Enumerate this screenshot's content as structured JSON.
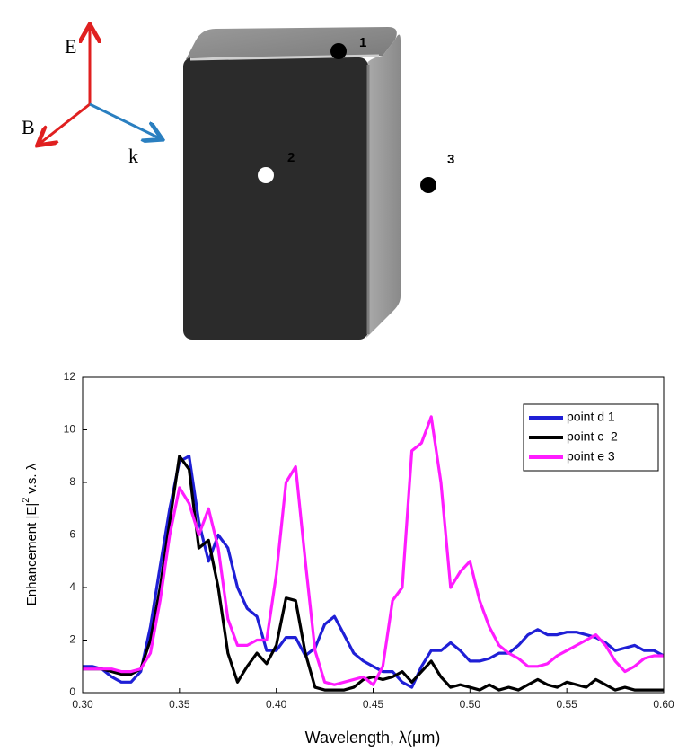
{
  "diagram": {
    "axes": [
      "E",
      "B",
      "k"
    ],
    "points": [
      "1",
      "2",
      "3"
    ]
  },
  "chart_data": {
    "type": "line",
    "xlabel": "Wavelength, λ(μm)",
    "ylabel": {
      "text": "Enhancement |E|",
      "superscript": "2",
      "suffix": "v.s. λ"
    },
    "x": [
      0.3,
      0.305,
      0.31,
      0.315,
      0.32,
      0.325,
      0.33,
      0.335,
      0.34,
      0.345,
      0.35,
      0.355,
      0.36,
      0.365,
      0.37,
      0.375,
      0.38,
      0.385,
      0.39,
      0.395,
      0.4,
      0.405,
      0.41,
      0.415,
      0.42,
      0.425,
      0.43,
      0.435,
      0.44,
      0.445,
      0.45,
      0.455,
      0.46,
      0.465,
      0.47,
      0.475,
      0.48,
      0.485,
      0.49,
      0.495,
      0.5,
      0.505,
      0.51,
      0.515,
      0.52,
      0.525,
      0.53,
      0.535,
      0.54,
      0.545,
      0.55,
      0.555,
      0.56,
      0.565,
      0.57,
      0.575,
      0.58,
      0.585,
      0.59,
      0.595,
      0.6
    ],
    "series": [
      {
        "name": "point d 1",
        "color": "#1f1fd6",
        "values": [
          1.0,
          1.0,
          0.9,
          0.6,
          0.4,
          0.4,
          0.8,
          2.5,
          4.8,
          7.0,
          8.8,
          9.0,
          6.5,
          5.0,
          6.0,
          5.5,
          4.0,
          3.2,
          2.9,
          1.6,
          1.6,
          2.1,
          2.1,
          1.4,
          1.7,
          2.6,
          2.9,
          2.2,
          1.5,
          1.2,
          1.0,
          0.8,
          0.8,
          0.4,
          0.2,
          1.0,
          1.6,
          1.6,
          1.9,
          1.6,
          1.2,
          1.2,
          1.3,
          1.5,
          1.5,
          1.8,
          2.2,
          2.4,
          2.2,
          2.2,
          2.3,
          2.3,
          2.2,
          2.1,
          1.9,
          1.6,
          1.7,
          1.8,
          1.6,
          1.6,
          1.4
        ]
      },
      {
        "name": "point c  2",
        "color": "#000000",
        "values": [
          0.9,
          0.9,
          0.9,
          0.8,
          0.7,
          0.7,
          0.9,
          2.0,
          4.0,
          6.5,
          9.0,
          8.5,
          5.5,
          5.8,
          4.0,
          1.5,
          0.4,
          1.0,
          1.5,
          1.1,
          1.8,
          3.6,
          3.5,
          1.5,
          0.2,
          0.1,
          0.1,
          0.1,
          0.2,
          0.5,
          0.6,
          0.5,
          0.6,
          0.8,
          0.4,
          0.8,
          1.2,
          0.6,
          0.2,
          0.3,
          0.2,
          0.1,
          0.3,
          0.1,
          0.2,
          0.1,
          0.3,
          0.5,
          0.3,
          0.2,
          0.4,
          0.3,
          0.2,
          0.5,
          0.3,
          0.1,
          0.2,
          0.1,
          0.1,
          0.1,
          0.1
        ]
      },
      {
        "name": "point e 3",
        "color": "#ff1cff",
        "values": [
          0.9,
          0.9,
          0.9,
          0.9,
          0.8,
          0.8,
          0.9,
          1.5,
          3.5,
          6.0,
          7.8,
          7.2,
          6.0,
          7.0,
          5.5,
          2.8,
          1.8,
          1.8,
          2.0,
          2.0,
          4.5,
          8.0,
          8.6,
          5.0,
          1.6,
          0.4,
          0.3,
          0.4,
          0.5,
          0.6,
          0.3,
          1.0,
          3.5,
          4.0,
          9.2,
          9.5,
          10.5,
          8.0,
          4.0,
          4.6,
          5.0,
          3.5,
          2.5,
          1.8,
          1.5,
          1.3,
          1.0,
          1.0,
          1.1,
          1.4,
          1.6,
          1.8,
          2.0,
          2.2,
          1.8,
          1.2,
          0.8,
          1.0,
          1.3,
          1.4,
          1.4
        ]
      }
    ],
    "xlim": [
      0.3,
      0.6
    ],
    "xticks": [
      {
        "value": 0.3,
        "label": "0.30"
      },
      0.35,
      {
        "value": 0.4,
        "label": "0.40"
      },
      0.45,
      {
        "value": 0.5,
        "label": "0.50"
      },
      0.55,
      {
        "value": 0.6,
        "label": "0.60"
      }
    ],
    "ylim": [
      0,
      12
    ],
    "yticks": [
      0,
      2,
      4,
      6,
      8,
      10,
      12
    ],
    "legend": "upper right"
  }
}
